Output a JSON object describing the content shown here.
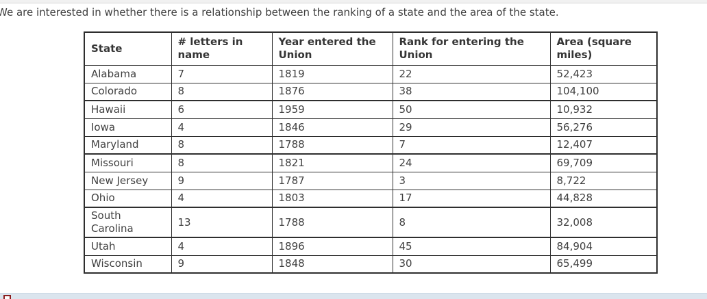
{
  "intro": {
    "text": "We are interested in whether there is a relationship between the ranking of a state and the area of the state."
  },
  "table": {
    "headers": [
      "State",
      "# letters in name",
      "Year entered the Union",
      "Rank for entering the Union",
      "Area (square miles)"
    ],
    "rows": [
      [
        "Alabama",
        "7",
        "1819",
        "22",
        "52,423"
      ],
      [
        "Colorado",
        "8",
        "1876",
        "38",
        "104,100"
      ],
      [
        "Hawaii",
        "6",
        "1959",
        "50",
        "10,932"
      ],
      [
        "Iowa",
        "4",
        "1846",
        "29",
        "56,276"
      ],
      [
        "Maryland",
        "8",
        "1788",
        "7",
        "12,407"
      ],
      [
        "Missouri",
        "8",
        "1821",
        "24",
        "69,709"
      ],
      [
        "New Jersey",
        "9",
        "1787",
        "3",
        "8,722"
      ],
      [
        "Ohio",
        "4",
        "1803",
        "17",
        "44,828"
      ],
      [
        "South Carolina",
        "13",
        "1788",
        "8",
        "32,008"
      ],
      [
        "Utah",
        "4",
        "1896",
        "45",
        "84,904"
      ],
      [
        "Wisconsin",
        "9",
        "1848",
        "30",
        "65,499"
      ]
    ]
  },
  "chart_data": {
    "type": "table",
    "title": "",
    "columns": [
      "State",
      "# letters in name",
      "Year entered the Union",
      "Rank for entering the Union",
      "Area (square miles)"
    ],
    "records": [
      {
        "state": "Alabama",
        "letters_in_name": 7,
        "year_entered_union": 1819,
        "rank_for_entering_union": 22,
        "area_square_miles": 52423
      },
      {
        "state": "Colorado",
        "letters_in_name": 8,
        "year_entered_union": 1876,
        "rank_for_entering_union": 38,
        "area_square_miles": 104100
      },
      {
        "state": "Hawaii",
        "letters_in_name": 6,
        "year_entered_union": 1959,
        "rank_for_entering_union": 50,
        "area_square_miles": 10932
      },
      {
        "state": "Iowa",
        "letters_in_name": 4,
        "year_entered_union": 1846,
        "rank_for_entering_union": 29,
        "area_square_miles": 56276
      },
      {
        "state": "Maryland",
        "letters_in_name": 8,
        "year_entered_union": 1788,
        "rank_for_entering_union": 7,
        "area_square_miles": 12407
      },
      {
        "state": "Missouri",
        "letters_in_name": 8,
        "year_entered_union": 1821,
        "rank_for_entering_union": 24,
        "area_square_miles": 69709
      },
      {
        "state": "New Jersey",
        "letters_in_name": 9,
        "year_entered_union": 1787,
        "rank_for_entering_union": 3,
        "area_square_miles": 8722
      },
      {
        "state": "Ohio",
        "letters_in_name": 4,
        "year_entered_union": 1803,
        "rank_for_entering_union": 17,
        "area_square_miles": 44828
      },
      {
        "state": "South Carolina",
        "letters_in_name": 13,
        "year_entered_union": 1788,
        "rank_for_entering_union": 8,
        "area_square_miles": 32008
      },
      {
        "state": "Utah",
        "letters_in_name": 4,
        "year_entered_union": 1896,
        "rank_for_entering_union": 45,
        "area_square_miles": 84904
      },
      {
        "state": "Wisconsin",
        "letters_in_name": 9,
        "year_entered_union": 1848,
        "rank_for_entering_union": 30,
        "area_square_miles": 65499
      }
    ]
  },
  "colors": {
    "text": "#3d3d3d",
    "table_border": "#2e2e2e",
    "top_strip": "#f1f1f1",
    "bottom_band": "#dbe5ee",
    "red_box_border": "#8b1f1f"
  }
}
